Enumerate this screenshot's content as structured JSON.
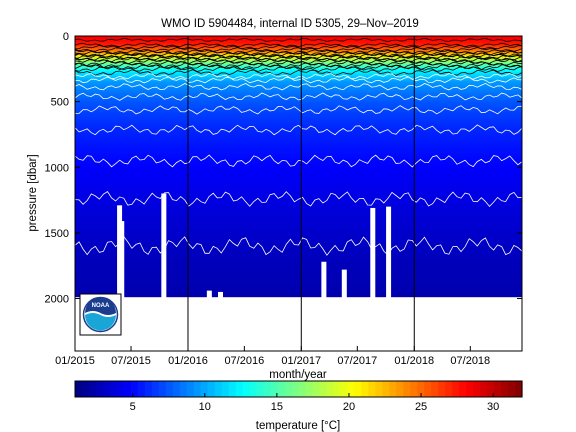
{
  "chart_data": {
    "type": "heatmap",
    "title": "WMO ID 5904484, internal ID 5305, 29–Nov–2019",
    "xlabel": "month/year",
    "ylabel": "pressure [dbar]",
    "xlim": [
      "2015-01-01",
      "2018-12-15"
    ],
    "ylim": [
      2400,
      0
    ],
    "y_reversed": true,
    "x_ticks": [
      "01/2015",
      "07/2015",
      "01/2016",
      "07/2016",
      "01/2017",
      "07/2017",
      "01/2018",
      "07/2018"
    ],
    "y_ticks": [
      0,
      500,
      1000,
      1500,
      2000
    ],
    "colorbar": {
      "label": "temperature [°C]",
      "range": [
        1,
        32
      ],
      "ticks": [
        5,
        10,
        15,
        20,
        25,
        30
      ],
      "colormap": "jet"
    },
    "max_profile_depth_dbar": 1990,
    "profile_dates_approx": [
      "2015-01-01",
      "2019-01-01"
    ],
    "temperature_profile_typical": {
      "pressure_dbar": [
        0,
        60,
        120,
        180,
        250,
        350,
        500,
        650,
        800,
        1000,
        1300,
        1600,
        1990
      ],
      "temperature_c": [
        28.5,
        27.5,
        24.0,
        18.0,
        13.0,
        9.5,
        7.5,
        6.3,
        5.6,
        4.8,
        3.8,
        3.0,
        2.4
      ]
    },
    "isotherms": [
      {
        "temperature_c": 5,
        "pressure_dbar": 920
      },
      {
        "temperature_c": 4,
        "pressure_dbar": 1150
      },
      {
        "temperature_c": 3,
        "pressure_dbar": 1560
      }
    ],
    "vertical_markers": [
      "2016-01-01",
      "2017-01-01",
      "2018-01-01"
    ],
    "logo": {
      "text": "NOAA",
      "colors": [
        "#1a3d8f",
        "#19a6d6"
      ]
    }
  }
}
